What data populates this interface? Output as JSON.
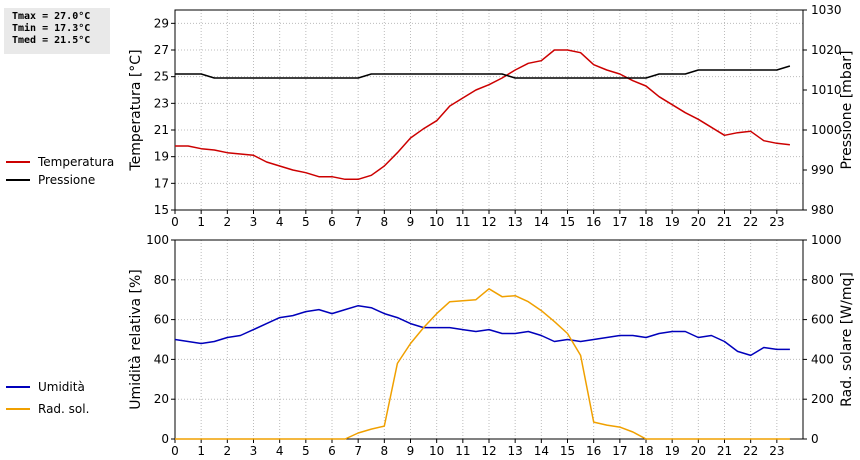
{
  "stats": {
    "tmax": "Tmax = 27.0°C",
    "tmin": "Tmin = 17.3°C",
    "tmed": "Tmed = 21.5°C"
  },
  "colors": {
    "temperatura": "#cc0000",
    "pressione": "#000000",
    "umidita": "#0000bb",
    "rad_sol": "#f0a000",
    "grid": "#bcbcbc"
  },
  "chart_data": [
    {
      "type": "line",
      "x_ticks": [
        "0",
        "1",
        "2",
        "3",
        "4",
        "5",
        "6",
        "7",
        "8",
        "9",
        "10",
        "11",
        "12",
        "13",
        "14",
        "15",
        "16",
        "17",
        "18",
        "19",
        "20",
        "21",
        "22",
        "23"
      ],
      "xlim": [
        0,
        24
      ],
      "grid": true,
      "legend_position": "left",
      "y_left": {
        "label": "Temperatura [°C]",
        "lim": [
          15,
          30
        ],
        "ticks": [
          "15",
          "17",
          "19",
          "21",
          "23",
          "25",
          "27",
          "29"
        ]
      },
      "y_right": {
        "label": "Pressione [mbar]",
        "lim": [
          980,
          1030
        ],
        "ticks": [
          "980",
          "990",
          "1000",
          "1010",
          "1020",
          "1030"
        ]
      },
      "series": [
        {
          "name": "Temperatura",
          "axis": "left",
          "x": [
            0,
            0.5,
            1,
            1.5,
            2,
            2.5,
            3,
            3.5,
            4,
            4.5,
            5,
            5.5,
            6,
            6.5,
            7,
            7.5,
            8,
            8.5,
            9,
            9.5,
            10,
            10.5,
            11,
            11.5,
            12,
            12.5,
            13,
            13.5,
            14,
            14.5,
            15,
            15.5,
            16,
            16.5,
            17,
            17.5,
            18,
            18.5,
            19,
            19.5,
            20,
            20.5,
            21,
            21.5,
            22,
            22.5,
            23,
            23.5
          ],
          "y": [
            19.8,
            19.8,
            19.6,
            19.5,
            19.3,
            19.2,
            19.1,
            18.6,
            18.3,
            18.0,
            17.8,
            17.5,
            17.5,
            17.3,
            17.3,
            17.6,
            18.3,
            19.3,
            20.4,
            21.1,
            21.7,
            22.8,
            23.4,
            24.0,
            24.4,
            24.9,
            25.5,
            26.0,
            26.2,
            27.0,
            27.0,
            26.8,
            25.9,
            25.5,
            25.2,
            24.7,
            24.3,
            23.5,
            22.9,
            22.3,
            21.8,
            21.2,
            20.6,
            20.8,
            20.9,
            20.2,
            20.0,
            19.9
          ]
        },
        {
          "name": "Pressione",
          "axis": "right",
          "x": [
            0,
            0.5,
            1,
            1.5,
            2,
            2.5,
            3,
            3.5,
            4,
            4.5,
            5,
            5.5,
            6,
            6.5,
            7,
            7.5,
            8,
            8.5,
            9,
            9.5,
            10,
            10.5,
            11,
            11.5,
            12,
            12.5,
            13,
            13.5,
            14,
            14.5,
            15,
            15.5,
            16,
            16.5,
            17,
            17.5,
            18,
            18.5,
            19,
            19.5,
            20,
            20.5,
            21,
            21.5,
            22,
            22.5,
            23,
            23.5
          ],
          "y": [
            1014,
            1014,
            1014,
            1013,
            1013,
            1013,
            1013,
            1013,
            1013,
            1013,
            1013,
            1013,
            1013,
            1013,
            1013,
            1014,
            1014,
            1014,
            1014,
            1014,
            1014,
            1014,
            1014,
            1014,
            1014,
            1014,
            1013,
            1013,
            1013,
            1013,
            1013,
            1013,
            1013,
            1013,
            1013,
            1013,
            1013,
            1014,
            1014,
            1014,
            1015,
            1015,
            1015,
            1015,
            1015,
            1015,
            1015,
            1016
          ]
        }
      ]
    },
    {
      "type": "line",
      "x_ticks": [
        "0",
        "1",
        "2",
        "3",
        "4",
        "5",
        "6",
        "7",
        "8",
        "9",
        "10",
        "11",
        "12",
        "13",
        "14",
        "15",
        "16",
        "17",
        "18",
        "19",
        "20",
        "21",
        "22",
        "23"
      ],
      "xlim": [
        0,
        24
      ],
      "grid": true,
      "legend_position": "left",
      "y_left": {
        "label": "Umidità relativa [%]",
        "lim": [
          0,
          100
        ],
        "ticks": [
          "0",
          "20",
          "40",
          "60",
          "80",
          "100"
        ]
      },
      "y_right": {
        "label": "Rad. solare [W/mq]",
        "lim": [
          0,
          1000
        ],
        "ticks": [
          "0",
          "200",
          "400",
          "600",
          "800",
          "1000"
        ]
      },
      "series": [
        {
          "name": "Umidità",
          "axis": "left",
          "x": [
            0,
            0.5,
            1,
            1.5,
            2,
            2.5,
            3,
            3.5,
            4,
            4.5,
            5,
            5.5,
            6,
            6.5,
            7,
            7.5,
            8,
            8.5,
            9,
            9.5,
            10,
            10.5,
            11,
            11.5,
            12,
            12.5,
            13,
            13.5,
            14,
            14.5,
            15,
            15.5,
            16,
            16.5,
            17,
            17.5,
            18,
            18.5,
            19,
            19.5,
            20,
            20.5,
            21,
            21.5,
            22,
            22.5,
            23,
            23.5
          ],
          "y": [
            50,
            49,
            48,
            49,
            51,
            52,
            55,
            58,
            61,
            62,
            64,
            65,
            63,
            65,
            67,
            66,
            63,
            61,
            58,
            56,
            56,
            56,
            55,
            54,
            55,
            53,
            53,
            54,
            52,
            49,
            50,
            49,
            50,
            51,
            52,
            52,
            51,
            53,
            54,
            54,
            51,
            52,
            49,
            44,
            42,
            46,
            45,
            45
          ]
        },
        {
          "name": "Rad. sol.",
          "axis": "right",
          "x": [
            0,
            1,
            2,
            3,
            4,
            5,
            6,
            6.5,
            7,
            7.5,
            8,
            8.5,
            9,
            9.5,
            10,
            10.5,
            11,
            11.5,
            12,
            12.5,
            13,
            13.5,
            14,
            14.5,
            15,
            15.5,
            16,
            16.5,
            17,
            17.5,
            18,
            19,
            20,
            21,
            22,
            23,
            23.5
          ],
          "y": [
            0,
            0,
            0,
            0,
            0,
            0,
            0,
            0,
            30,
            50,
            65,
            380,
            480,
            560,
            630,
            690,
            695,
            700,
            755,
            715,
            720,
            690,
            645,
            590,
            530,
            420,
            85,
            70,
            60,
            35,
            0,
            0,
            0,
            0,
            0,
            0,
            0
          ]
        }
      ]
    }
  ]
}
